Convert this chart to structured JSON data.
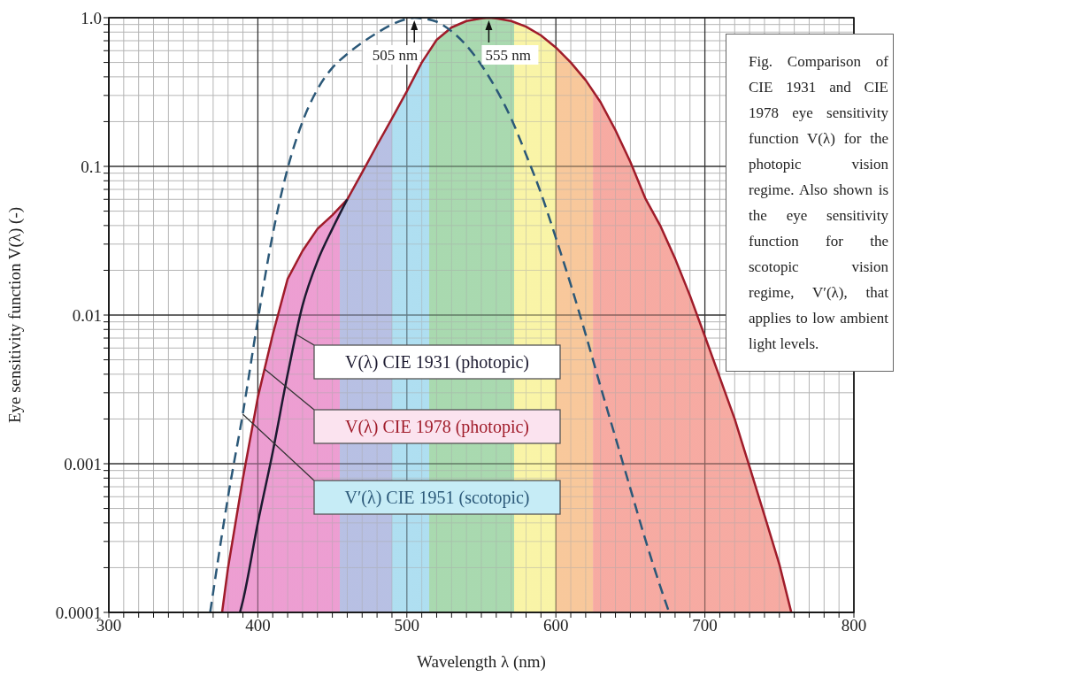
{
  "chart_data": {
    "type": "line",
    "xlabel": "Wavelength λ (nm)",
    "ylabel": "Eye sensitivity function V(λ) (-)",
    "log": "y",
    "grid": true,
    "legend": false,
    "xlim": [
      300,
      800
    ],
    "ylim": [
      0.0001,
      1
    ],
    "xticks": [
      300,
      {
        "value": 310,
        "label": null
      },
      {
        "value": 320,
        "label": null
      },
      {
        "value": 330,
        "label": null
      },
      {
        "value": 340,
        "label": null
      },
      {
        "value": 350,
        "label": null
      },
      {
        "value": 360,
        "label": null
      },
      {
        "value": 370,
        "label": null
      },
      {
        "value": 380,
        "label": null
      },
      {
        "value": 390,
        "label": null
      },
      400,
      {
        "value": 410,
        "label": null
      },
      {
        "value": 420,
        "label": null
      },
      {
        "value": 430,
        "label": null
      },
      {
        "value": 440,
        "label": null
      },
      {
        "value": 450,
        "label": null
      },
      {
        "value": 460,
        "label": null
      },
      {
        "value": 470,
        "label": null
      },
      {
        "value": 480,
        "label": null
      },
      {
        "value": 490,
        "label": null
      },
      500,
      {
        "value": 510,
        "label": null
      },
      {
        "value": 520,
        "label": null
      },
      {
        "value": 530,
        "label": null
      },
      {
        "value": 540,
        "label": null
      },
      {
        "value": 550,
        "label": null
      },
      {
        "value": 560,
        "label": null
      },
      {
        "value": 570,
        "label": null
      },
      {
        "value": 580,
        "label": null
      },
      {
        "value": 590,
        "label": null
      },
      600,
      {
        "value": 610,
        "label": null
      },
      {
        "value": 620,
        "label": null
      },
      {
        "value": 630,
        "label": null
      },
      {
        "value": 640,
        "label": null
      },
      {
        "value": 650,
        "label": null
      },
      {
        "value": 660,
        "label": null
      },
      {
        "value": 670,
        "label": null
      },
      {
        "value": 680,
        "label": null
      },
      {
        "value": 690,
        "label": null
      },
      700,
      {
        "value": 710,
        "label": null
      },
      {
        "value": 720,
        "label": null
      },
      {
        "value": 730,
        "label": null
      },
      {
        "value": 740,
        "label": null
      },
      {
        "value": 750,
        "label": null
      },
      {
        "value": 760,
        "label": null
      },
      {
        "value": 770,
        "label": null
      },
      {
        "value": 780,
        "label": null
      },
      {
        "value": 790,
        "label": null
      },
      800
    ],
    "yticks": [
      0.0001,
      {
        "value": 0.0002,
        "label": null
      },
      {
        "value": 0.0003,
        "label": null
      },
      {
        "value": 0.0004,
        "label": null
      },
      {
        "value": 0.0005,
        "label": null
      },
      {
        "value": 0.0006,
        "label": null
      },
      {
        "value": 0.0007,
        "label": null
      },
      {
        "value": 0.0008,
        "label": null
      },
      {
        "value": 0.0009,
        "label": null
      },
      0.001,
      {
        "value": 0.002,
        "label": null
      },
      {
        "value": 0.003,
        "label": null
      },
      {
        "value": 0.004,
        "label": null
      },
      {
        "value": 0.005,
        "label": null
      },
      {
        "value": 0.006,
        "label": null
      },
      {
        "value": 0.007,
        "label": null
      },
      {
        "value": 0.008,
        "label": null
      },
      {
        "value": 0.009,
        "label": null
      },
      0.01,
      {
        "value": 0.02,
        "label": null
      },
      {
        "value": 0.03,
        "label": null
      },
      {
        "value": 0.04,
        "label": null
      },
      {
        "value": 0.05,
        "label": null
      },
      {
        "value": 0.06,
        "label": null
      },
      {
        "value": 0.07,
        "label": null
      },
      {
        "value": 0.08,
        "label": null
      },
      {
        "value": 0.09,
        "label": null
      },
      0.1,
      {
        "value": 0.2,
        "label": null
      },
      {
        "value": 0.3,
        "label": null
      },
      {
        "value": 0.4,
        "label": null
      },
      {
        "value": 0.5,
        "label": null
      },
      {
        "value": 0.6,
        "label": null
      },
      {
        "value": 0.7,
        "label": null
      },
      {
        "value": 0.8,
        "label": null
      },
      {
        "value": 0.9,
        "label": null
      },
      {
        "value": 1,
        "label": "1.0"
      }
    ],
    "series": [
      {
        "name": "V(λ) CIE 1978 (photopic)",
        "type": "area",
        "color": "#a01c2a",
        "line_style": "solid",
        "x": [
          376,
          380,
          390,
          400,
          410,
          420,
          430,
          440,
          450,
          460,
          470,
          480,
          490,
          500,
          510,
          520,
          530,
          540,
          550,
          555,
          560,
          570,
          580,
          590,
          600,
          610,
          620,
          630,
          640,
          650,
          660,
          670,
          680,
          690,
          700,
          710,
          720,
          730,
          740,
          750,
          758
        ],
        "values": [
          0.0001,
          0.0002,
          0.0008,
          0.0028,
          0.0074,
          0.0175,
          0.027,
          0.038,
          0.047,
          0.06,
          0.091,
          0.139,
          0.21,
          0.32,
          0.5,
          0.71,
          0.86,
          0.95,
          0.99,
          1,
          0.99,
          0.95,
          0.87,
          0.76,
          0.63,
          0.5,
          0.38,
          0.27,
          0.175,
          0.107,
          0.061,
          0.04,
          0.024,
          0.0135,
          0.0072,
          0.0038,
          0.002,
          0.00095,
          0.00045,
          0.00021,
          0.0001
        ]
      },
      {
        "name": "V(λ) CIE 1931 (photopic)",
        "color": "#1c1a30",
        "line_style": "solid",
        "x": [
          388,
          390,
          400,
          410,
          420,
          430,
          440,
          450,
          460
        ],
        "values": [
          0.0001,
          0.00012,
          0.0004,
          0.0012,
          0.004,
          0.0116,
          0.023,
          0.038,
          0.06
        ]
      },
      {
        "name": "V′(λ) CIE 1951 (scotopic)",
        "color": "#2b5878",
        "line_style": "dashed",
        "x": [
          368,
          380,
          390,
          400,
          410,
          420,
          430,
          440,
          450,
          460,
          470,
          480,
          490,
          500,
          505,
          510,
          520,
          530,
          540,
          550,
          560,
          570,
          580,
          590,
          600,
          610,
          620,
          630,
          640,
          650,
          660,
          670,
          676
        ],
        "values": [
          0.0001,
          0.0006,
          0.0022,
          0.0093,
          0.035,
          0.097,
          0.2,
          0.33,
          0.46,
          0.57,
          0.68,
          0.79,
          0.9,
          0.98,
          1,
          0.99,
          0.94,
          0.81,
          0.65,
          0.48,
          0.33,
          0.21,
          0.12,
          0.066,
          0.033,
          0.016,
          0.0074,
          0.0033,
          0.0015,
          0.00068,
          0.00031,
          0.00015,
          0.0001
        ]
      }
    ],
    "bands": [
      {
        "axis": "x",
        "from": 375,
        "to": 455,
        "color": "#e98bc9"
      },
      {
        "axis": "x",
        "from": 455,
        "to": 490,
        "color": "#aab4de"
      },
      {
        "axis": "x",
        "from": 490,
        "to": 515,
        "color": "#9fd8ee"
      },
      {
        "axis": "x",
        "from": 515,
        "to": 572,
        "color": "#98d2a0"
      },
      {
        "axis": "x",
        "from": 572,
        "to": 600,
        "color": "#f8f296"
      },
      {
        "axis": "x",
        "from": 600,
        "to": 625,
        "color": "#f7bd88"
      },
      {
        "axis": "x",
        "from": 625,
        "to": 800,
        "color": "#f59a90"
      }
    ],
    "annotations": [
      {
        "text": "505 nm",
        "x": 505,
        "y": 1
      },
      {
        "text": "555 nm",
        "x": 555,
        "y": 1
      },
      "Fig. Comparison of CIE 1931 and CIE 1978 eye sensitivity function V(λ) for the photopic vision regime. Also shown is the eye sensitivity function for the scotopic vision regime, V′(λ), that applies to low ambient light levels."
    ]
  }
}
